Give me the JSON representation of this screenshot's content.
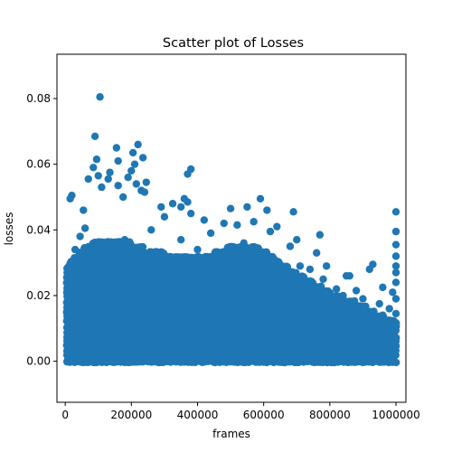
{
  "chart_data": {
    "type": "scatter",
    "title": "Scatter plot of Losses",
    "xlabel": "frames",
    "ylabel": "losses",
    "xlim": [
      -25000,
      1030000
    ],
    "ylim": [
      -0.0125,
      0.0935
    ],
    "grid": false,
    "legend": "none",
    "color": "#1f77b4",
    "xticks": [
      {
        "value": 0,
        "label": "0"
      },
      {
        "value": 200000,
        "label": "200000"
      },
      {
        "value": 400000,
        "label": "400000"
      },
      {
        "value": 600000,
        "label": "600000"
      },
      {
        "value": 800000,
        "label": "800000"
      },
      {
        "value": 1000000,
        "label": "1000000"
      }
    ],
    "yticks": [
      {
        "value": 0.0,
        "label": "0.00"
      },
      {
        "value": 0.02,
        "label": "0.02"
      },
      {
        "value": 0.04,
        "label": "0.04"
      },
      {
        "value": 0.06,
        "label": "0.06"
      },
      {
        "value": 0.08,
        "label": "0.08"
      }
    ],
    "series": [
      {
        "points": [
          [
            105000,
            0.0805
          ],
          [
            90000,
            0.0685
          ],
          [
            220000,
            0.066
          ],
          [
            155000,
            0.065
          ],
          [
            205000,
            0.0635
          ],
          [
            235000,
            0.062
          ],
          [
            95000,
            0.0615
          ],
          [
            160000,
            0.061
          ],
          [
            210000,
            0.06
          ],
          [
            85000,
            0.059
          ],
          [
            380000,
            0.0585
          ],
          [
            200000,
            0.058
          ],
          [
            135000,
            0.0575
          ],
          [
            370000,
            0.057
          ],
          [
            100000,
            0.0565
          ],
          [
            190000,
            0.056
          ],
          [
            130000,
            0.0555
          ],
          [
            70000,
            0.0555
          ],
          [
            245000,
            0.0545
          ],
          [
            215000,
            0.054
          ],
          [
            160000,
            0.0535
          ],
          [
            110000,
            0.053
          ],
          [
            230000,
            0.052
          ],
          [
            240000,
            0.0515
          ],
          [
            20000,
            0.0505
          ],
          [
            175000,
            0.05
          ],
          [
            15000,
            0.0495
          ],
          [
            360000,
            0.0495
          ],
          [
            590000,
            0.0495
          ],
          [
            370000,
            0.0485
          ],
          [
            325000,
            0.048
          ],
          [
            290000,
            0.047
          ],
          [
            350000,
            0.047
          ],
          [
            550000,
            0.047
          ],
          [
            610000,
            0.046
          ],
          [
            500000,
            0.0465
          ],
          [
            690000,
            0.0455
          ],
          [
            1000000,
            0.0455
          ],
          [
            55000,
            0.046
          ],
          [
            380000,
            0.045
          ],
          [
            300000,
            0.044
          ],
          [
            420000,
            0.043
          ],
          [
            570000,
            0.0425
          ],
          [
            480000,
            0.042
          ],
          [
            520000,
            0.0415
          ],
          [
            640000,
            0.041
          ],
          [
            60000,
            0.0405
          ],
          [
            260000,
            0.04
          ],
          [
            440000,
            0.039
          ],
          [
            620000,
            0.0395
          ],
          [
            1000000,
            0.0395
          ],
          [
            770000,
            0.0385
          ],
          [
            45000,
            0.038
          ],
          [
            180000,
            0.037
          ],
          [
            700000,
            0.037
          ],
          [
            350000,
            0.037
          ],
          [
            1000000,
            0.0355
          ],
          [
            30000,
            0.034
          ],
          [
            680000,
            0.035
          ],
          [
            760000,
            0.033
          ],
          [
            540000,
            0.036
          ],
          [
            400000,
            0.034
          ],
          [
            1000000,
            0.032
          ],
          [
            930000,
            0.0295
          ],
          [
            790000,
            0.029
          ],
          [
            1000000,
            0.029
          ],
          [
            710000,
            0.029
          ],
          [
            920000,
            0.028
          ],
          [
            740000,
            0.028
          ],
          [
            850000,
            0.026
          ],
          [
            1000000,
            0.027
          ],
          [
            860000,
            0.026
          ],
          [
            780000,
            0.025
          ],
          [
            1000000,
            0.024
          ],
          [
            960000,
            0.0225
          ],
          [
            820000,
            0.022
          ],
          [
            880000,
            0.0215
          ],
          [
            990000,
            0.021
          ],
          [
            840000,
            0.02
          ],
          [
            950000,
            0.0175
          ],
          [
            1000000,
            0.019
          ],
          [
            900000,
            0.019
          ],
          [
            980000,
            0.016
          ],
          [
            1000000,
            0.0145
          ],
          [
            960000,
            0.014
          ],
          [
            920000,
            0.012
          ],
          [
            980000,
            0.0125
          ],
          [
            1000000,
            0.011
          ]
        ],
        "density_envelope": [
          [
            5000,
            0.029
          ],
          [
            30000,
            0.032
          ],
          [
            60000,
            0.035
          ],
          [
            100000,
            0.037
          ],
          [
            150000,
            0.037
          ],
          [
            200000,
            0.036
          ],
          [
            250000,
            0.034
          ],
          [
            300000,
            0.033
          ],
          [
            350000,
            0.032
          ],
          [
            400000,
            0.032
          ],
          [
            450000,
            0.033
          ],
          [
            500000,
            0.035
          ],
          [
            550000,
            0.036
          ],
          [
            600000,
            0.034
          ],
          [
            650000,
            0.03
          ],
          [
            700000,
            0.027
          ],
          [
            750000,
            0.024
          ],
          [
            800000,
            0.021
          ],
          [
            850000,
            0.019
          ],
          [
            900000,
            0.017
          ],
          [
            950000,
            0.014
          ],
          [
            1000000,
            0.012
          ]
        ]
      }
    ]
  }
}
